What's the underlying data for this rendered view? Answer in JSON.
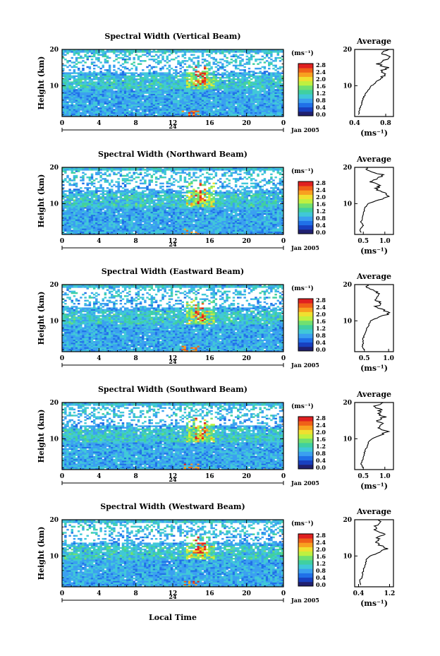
{
  "figure": {
    "xlabel": "Local Time",
    "date_label": "Jan 2005",
    "day_label": "24",
    "colorbar_unit": "(ms⁻¹)",
    "average_title": "Average",
    "average_unit": "(ms⁻¹)"
  },
  "colorbar": {
    "ticks": [
      "2.8",
      "2.4",
      "2.0",
      "1.6",
      "1.2",
      "0.8",
      "0.4",
      "0.0"
    ],
    "colors": [
      "#202070",
      "#1840c0",
      "#2070e8",
      "#3aa0f0",
      "#40c8d8",
      "#40d0a0",
      "#70e070",
      "#c0f040",
      "#f0e030",
      "#f8a020",
      "#f06018",
      "#e02020"
    ]
  },
  "chart_data": [
    {
      "type": "heatmap",
      "title": "Spectral Width (Vertical Beam)",
      "ylabel": "Height (km)",
      "xlabel": "Local Time",
      "x_ticks": [
        "0",
        "4",
        "8",
        "12",
        "16",
        "20",
        "0"
      ],
      "y_ticks": [
        "20",
        "10"
      ],
      "xlim": [
        0,
        24
      ],
      "ylim": [
        1.5,
        20
      ],
      "zlim": [
        0.0,
        2.8
      ],
      "average": {
        "title": "Average",
        "x_ticks": [
          "0.4",
          "0.8"
        ],
        "xlim": [
          0.4,
          0.9
        ],
        "heights": [
          2,
          3,
          4,
          5,
          6,
          7,
          8,
          9,
          10,
          11,
          12,
          13,
          14,
          15,
          16,
          17,
          18,
          19,
          20
        ],
        "values": [
          0.45,
          0.46,
          0.47,
          0.49,
          0.5,
          0.52,
          0.55,
          0.58,
          0.62,
          0.68,
          0.72,
          0.8,
          0.75,
          0.82,
          0.7,
          0.78,
          0.85,
          0.75,
          0.82
        ]
      }
    },
    {
      "type": "heatmap",
      "title": "Spectral Width (Northward Beam)",
      "ylabel": "Height (km)",
      "xlabel": "Local Time",
      "x_ticks": [
        "0",
        "4",
        "8",
        "12",
        "16",
        "20",
        "0"
      ],
      "y_ticks": [
        "20",
        "10"
      ],
      "xlim": [
        0,
        24
      ],
      "ylim": [
        1.5,
        20
      ],
      "zlim": [
        0.0,
        2.8
      ],
      "average": {
        "title": "Average",
        "x_ticks": [
          "0.5",
          "1.0"
        ],
        "xlim": [
          0.3,
          1.2
        ],
        "heights": [
          2,
          3,
          4,
          5,
          6,
          7,
          8,
          9,
          10,
          11,
          12,
          13,
          14,
          15,
          16,
          17,
          18,
          19,
          20
        ],
        "values": [
          0.45,
          0.42,
          0.5,
          0.45,
          0.48,
          0.5,
          0.52,
          0.55,
          0.6,
          0.85,
          1.1,
          0.95,
          0.8,
          0.9,
          0.7,
          0.85,
          0.95,
          0.65,
          0.55
        ]
      }
    },
    {
      "type": "heatmap",
      "title": "Spectral Width (Eastward Beam)",
      "ylabel": "Height (km)",
      "xlabel": "Local Time",
      "x_ticks": [
        "0",
        "4",
        "8",
        "12",
        "16",
        "20",
        "0"
      ],
      "y_ticks": [
        "20",
        "10"
      ],
      "xlim": [
        0,
        24
      ],
      "ylim": [
        1.5,
        20
      ],
      "zlim": [
        0.0,
        2.8
      ],
      "average": {
        "title": "Average",
        "x_ticks": [
          "0.5",
          "1.0"
        ],
        "xlim": [
          0.3,
          1.1
        ],
        "heights": [
          2,
          3,
          4,
          5,
          6,
          7,
          8,
          9,
          10,
          11,
          12,
          13,
          14,
          15,
          16,
          17,
          18,
          19,
          20
        ],
        "values": [
          0.5,
          0.45,
          0.48,
          0.47,
          0.5,
          0.52,
          0.55,
          0.6,
          0.62,
          0.8,
          1.0,
          0.9,
          0.75,
          0.85,
          0.7,
          0.8,
          0.75,
          0.6,
          0.55
        ]
      }
    },
    {
      "type": "heatmap",
      "title": "Spectral Width (Southward Beam)",
      "ylabel": "Height (km)",
      "xlabel": "Local Time",
      "x_ticks": [
        "0",
        "4",
        "8",
        "12",
        "16",
        "20",
        "0"
      ],
      "y_ticks": [
        "20",
        "10"
      ],
      "xlim": [
        0,
        24
      ],
      "ylim": [
        1.5,
        20
      ],
      "zlim": [
        0.0,
        2.8
      ],
      "average": {
        "title": "Average",
        "x_ticks": [
          "0.5",
          "1.0"
        ],
        "xlim": [
          0.3,
          1.2
        ],
        "heights": [
          2,
          3,
          4,
          5,
          6,
          7,
          8,
          9,
          10,
          11,
          12,
          13,
          14,
          15,
          16,
          17,
          18,
          19,
          20
        ],
        "values": [
          0.5,
          0.45,
          0.48,
          0.5,
          0.52,
          0.55,
          0.6,
          0.62,
          0.7,
          0.9,
          1.05,
          0.85,
          0.95,
          0.8,
          1.0,
          0.85,
          0.9,
          0.75,
          0.95
        ]
      }
    },
    {
      "type": "heatmap",
      "title": "Spectral Width (Westward Beam)",
      "ylabel": "Height (km)",
      "xlabel": "Local Time",
      "x_ticks": [
        "0",
        "4",
        "8",
        "12",
        "16",
        "20",
        "0"
      ],
      "y_ticks": [
        "20",
        "10"
      ],
      "xlim": [
        0,
        24
      ],
      "ylim": [
        1.5,
        20
      ],
      "zlim": [
        0.0,
        2.8
      ],
      "average": {
        "title": "Average",
        "x_ticks": [
          "0.4",
          "1.2"
        ],
        "xlim": [
          0.3,
          1.3
        ],
        "heights": [
          2,
          3,
          4,
          5,
          6,
          7,
          8,
          9,
          10,
          11,
          12,
          13,
          14,
          15,
          16,
          17,
          18,
          19,
          20
        ],
        "values": [
          0.45,
          0.42,
          0.48,
          0.5,
          0.52,
          0.55,
          0.58,
          0.6,
          0.7,
          0.95,
          1.15,
          0.95,
          0.85,
          0.9,
          1.05,
          0.85,
          0.8,
          0.95,
          0.9
        ]
      }
    }
  ]
}
